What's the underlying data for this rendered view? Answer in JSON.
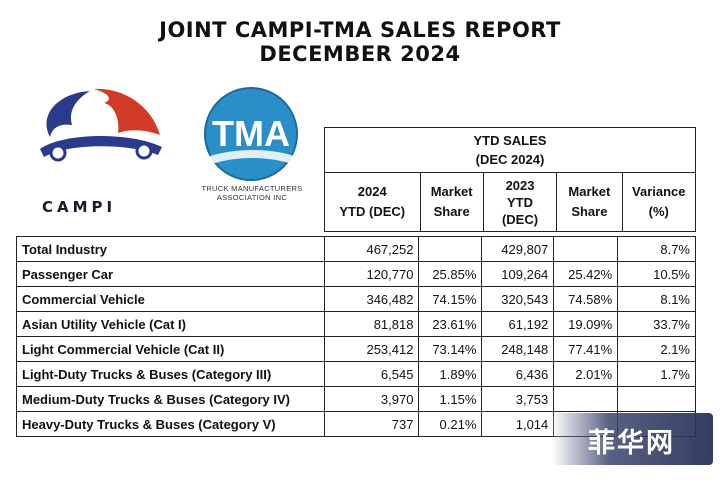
{
  "title_line1": "JOINT CAMPI-TMA SALES REPORT",
  "title_line2": "DECEMBER 2024",
  "campi_logo_text": "CAMPI",
  "tma_logo_text": "TMA",
  "tma_subtitle_line1": "TRUCK MANUFACTURERS",
  "tma_subtitle_line2": "ASSOCIATION  INC",
  "watermark_text": "菲华网",
  "table": {
    "group_header_line1": "YTD SALES",
    "group_header_line2": "(DEC 2024)",
    "col_2024_line1": "2024",
    "col_2024_line2": "YTD (DEC)",
    "col_share1_line1": "Market",
    "col_share1_line2": "Share",
    "col_2023_line1": "2023",
    "col_2023_line2": "YTD",
    "col_2023_line3": "(DEC)",
    "col_share2_line1": "Market",
    "col_share2_line2": "Share",
    "col_var_line1": "Variance",
    "col_var_line2": "(%)",
    "rows": [
      {
        "label": "Total Industry",
        "ytd2024": "467,252",
        "share2024": "",
        "ytd2023": "429,807",
        "share2023": "",
        "variance": "8.7%"
      },
      {
        "label": "Passenger Car",
        "ytd2024": "120,770",
        "share2024": "25.85%",
        "ytd2023": "109,264",
        "share2023": "25.42%",
        "variance": "10.5%"
      },
      {
        "label": "Commercial Vehicle",
        "ytd2024": "346,482",
        "share2024": "74.15%",
        "ytd2023": "320,543",
        "share2023": "74.58%",
        "variance": "8.1%"
      },
      {
        "label": "Asian Utility Vehicle (Cat I)",
        "ytd2024": "81,818",
        "share2024": "23.61%",
        "ytd2023": "61,192",
        "share2023": "19.09%",
        "variance": "33.7%"
      },
      {
        "label": "Light Commercial Vehicle (Cat II)",
        "ytd2024": "253,412",
        "share2024": "73.14%",
        "ytd2023": "248,148",
        "share2023": "77.41%",
        "variance": "2.1%"
      },
      {
        "label": "Light-Duty Trucks & Buses (Category III)",
        "ytd2024": "6,545",
        "share2024": "1.89%",
        "ytd2023": "6,436",
        "share2023": "2.01%",
        "variance": "1.7%"
      },
      {
        "label": "Medium-Duty Trucks & Buses (Category IV)",
        "ytd2024": "3,970",
        "share2024": "1.15%",
        "ytd2023": "3,753",
        "share2023": "",
        "variance": ""
      },
      {
        "label": "Heavy-Duty Trucks & Buses (Category V)",
        "ytd2024": "737",
        "share2024": "0.21%",
        "ytd2023": "1,014",
        "share2023": "",
        "variance": ""
      }
    ]
  }
}
